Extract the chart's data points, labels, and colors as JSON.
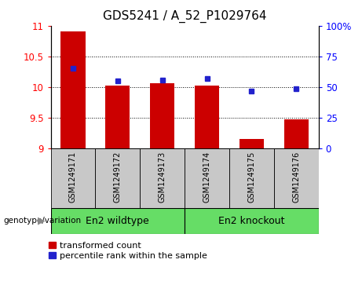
{
  "title": "GDS5241 / A_52_P1029764",
  "categories": [
    "GSM1249171",
    "GSM1249172",
    "GSM1249173",
    "GSM1249174",
    "GSM1249175",
    "GSM1249176"
  ],
  "bar_values": [
    10.9,
    10.02,
    10.06,
    10.02,
    9.15,
    9.47
  ],
  "blue_values_left": [
    10.3,
    10.1,
    10.11,
    10.14,
    9.93,
    9.97
  ],
  "ylim_left": [
    9,
    11
  ],
  "ylim_right": [
    0,
    100
  ],
  "yticks_left": [
    9,
    9.5,
    10,
    10.5,
    11
  ],
  "ytick_labels_left": [
    "9",
    "9.5",
    "10",
    "10.5",
    "11"
  ],
  "yticks_right": [
    0,
    25,
    50,
    75,
    100
  ],
  "ytick_labels_right": [
    "0",
    "25",
    "50",
    "75",
    "100%"
  ],
  "bar_color": "#cc0000",
  "blue_color": "#2222cc",
  "bar_width": 0.55,
  "group1_label": "En2 wildtype",
  "group2_label": "En2 knockout",
  "group_label_prefix": "genotype/variation",
  "legend_bar_label": "transformed count",
  "legend_blue_label": "percentile rank within the sample",
  "xticklabel_bg": "#c8c8c8",
  "group_bg": "#66dd66",
  "title_fontsize": 11,
  "tick_fontsize": 8.5,
  "xtick_fontsize": 7.0,
  "group_fontsize": 9.0,
  "legend_fontsize": 8.0
}
